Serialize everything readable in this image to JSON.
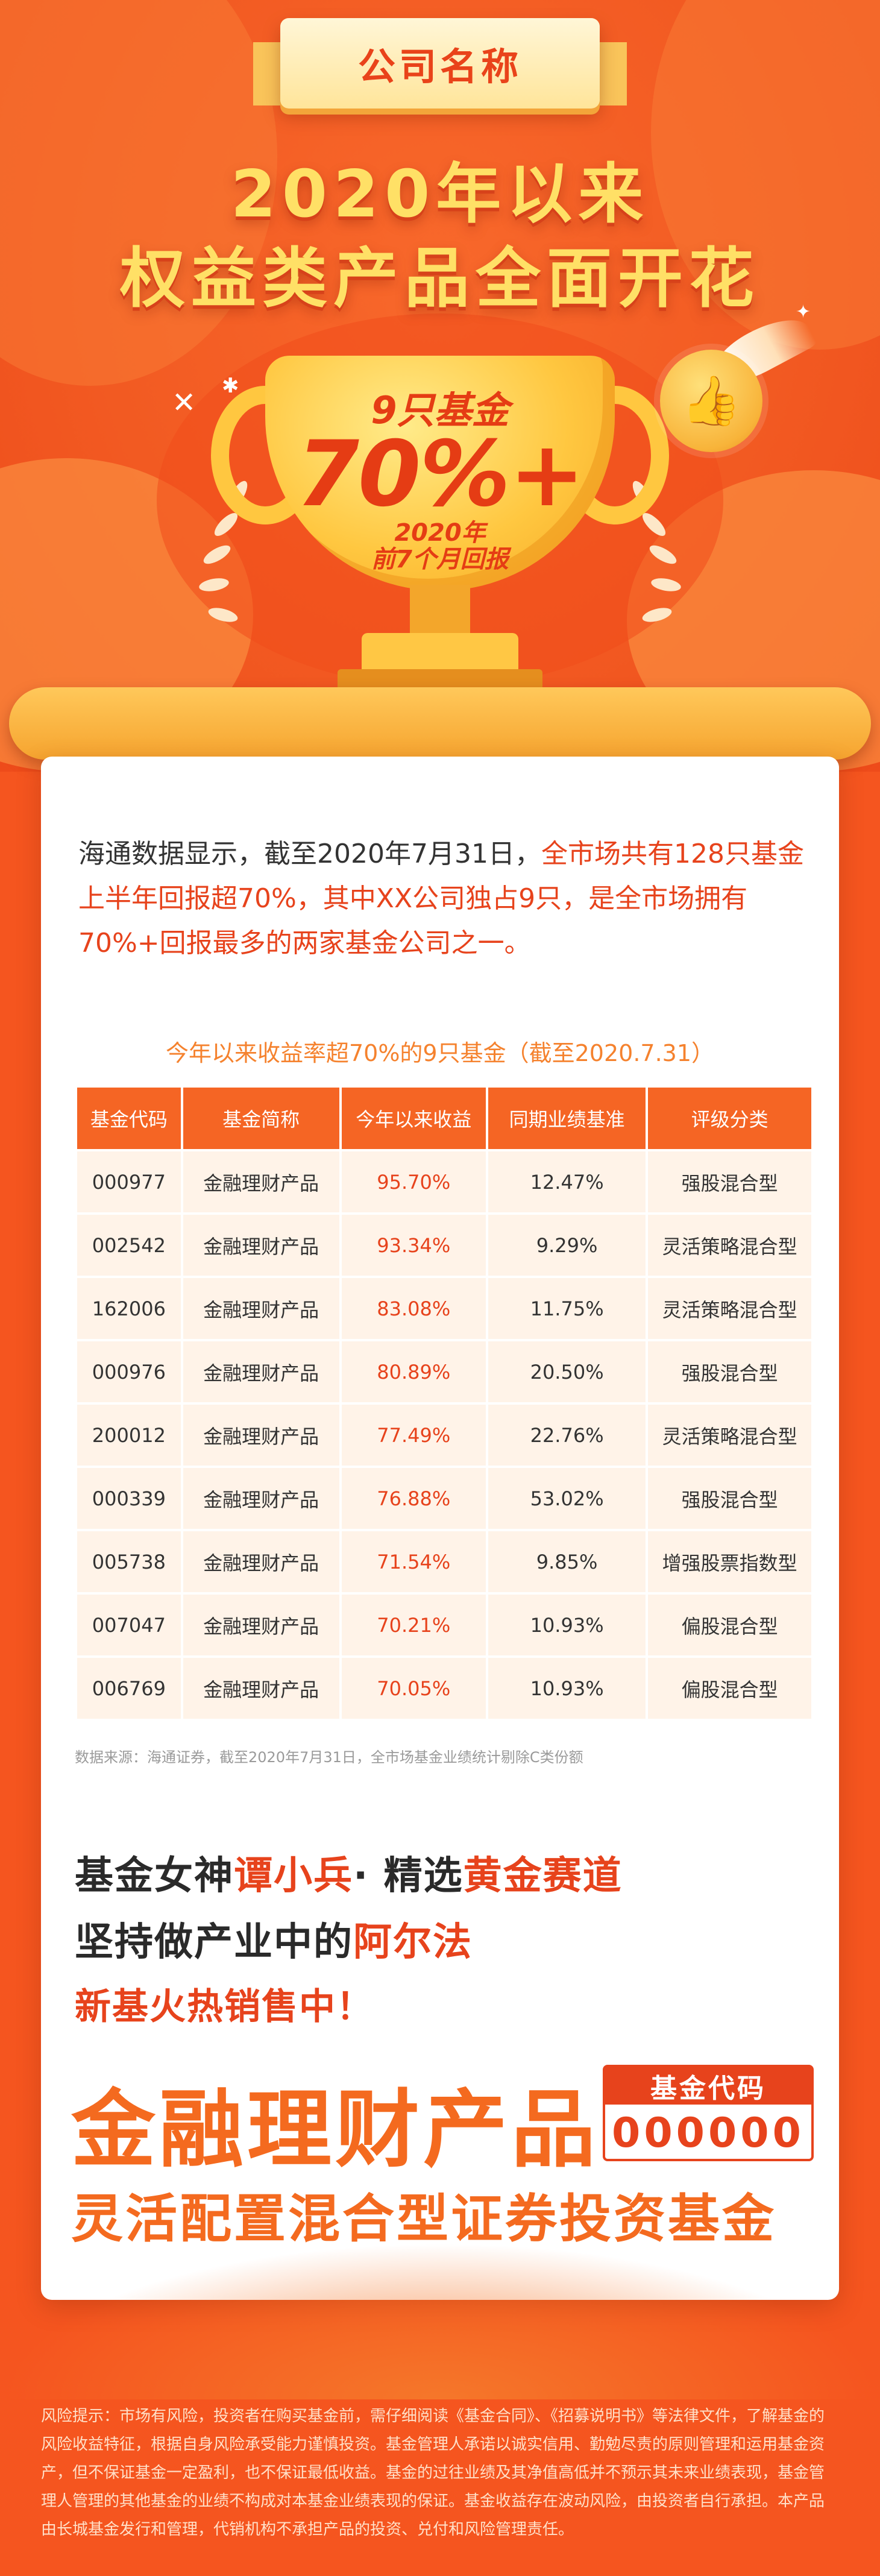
{
  "colors": {
    "background": "#f5551f",
    "accent_red": "#e7431c",
    "accent_orange": "#f46a1f",
    "gold": "#ffc740",
    "headline_yellow": "#ffe066",
    "table_header": "#f56524",
    "table_cell": "#fff3e8"
  },
  "hero": {
    "company_name": "公司名称",
    "headline_line1": "2020年以来",
    "headline_line2": "权益类产品全面开花",
    "trophy": {
      "line1": "9只基金",
      "line2": "70%+",
      "line3": "2020年\n前7个月回报"
    },
    "icons": [
      "trophy-icon",
      "thumbs-up-icon",
      "flame-icon",
      "sparkle-icon",
      "laurel-icon"
    ]
  },
  "intro": {
    "part1": "海通数据显示，截至2020年7月31日，",
    "highlight": "全市场共有128只基金上半年回报超70%，其中XX公司独占9只，是全市场拥有70%+回报最多的两家基金公司之一。"
  },
  "table": {
    "title": "今年以来收益率超70%的9只基金（截至2020.7.31）",
    "headers": [
      "基金代码",
      "基金简称",
      "今年以来收益",
      "同期业绩基准",
      "评级分类"
    ],
    "rows": [
      [
        "000977",
        "金融理财产品",
        "95.70%",
        "12.47%",
        "强股混合型"
      ],
      [
        "002542",
        "金融理财产品",
        "93.34%",
        "9.29%",
        "灵活策略混合型"
      ],
      [
        "162006",
        "金融理财产品",
        "83.08%",
        "11.75%",
        "灵活策略混合型"
      ],
      [
        "000976",
        "金融理财产品",
        "80.89%",
        "20.50%",
        "强股混合型"
      ],
      [
        "200012",
        "金融理财产品",
        "77.49%",
        "22.76%",
        "灵活策略混合型"
      ],
      [
        "000339",
        "金融理财产品",
        "76.88%",
        "53.02%",
        "强股混合型"
      ],
      [
        "005738",
        "金融理财产品",
        "71.54%",
        "9.85%",
        "增强股票指数型"
      ],
      [
        "007047",
        "金融理财产品",
        "70.21%",
        "10.93%",
        "偏股混合型"
      ],
      [
        "006769",
        "金融理财产品",
        "70.05%",
        "10.93%",
        "偏股混合型"
      ]
    ],
    "source": "数据来源：海通证券，截至2020年7月31日，全市场基金业绩统计剔除C类份额"
  },
  "promo": {
    "line1_a": "基金女神",
    "line1_b": "谭小兵",
    "line1_c": "· 精选",
    "line1_d": "黄金赛道",
    "line2_a": "坚持做产业中的",
    "line2_b": "阿尔法",
    "line3": "新基火热销售中！",
    "product_name": "金融理财产品",
    "code_label": "基金代码",
    "code_value": "000000",
    "product_type": "灵活配置混合型证券投资基金"
  },
  "risk": {
    "text": "风险提示：市场有风险，投资者在购买基金前，需仔细阅读《基金合同》、《招募说明书》等法律文件，了解基金的风险收益特征，根据自身风险承受能力谨慎投资。基金管理人承诺以诚实信用、勤勉尽责的原则管理和运用基金资产，但不保证基金一定盈利，也不保证最低收益。基金的过往业绩及其净值高低并不预示其未来业绩表现，基金管理人管理的其他基金的业绩不构成对本基金业绩表现的保证。基金收益存在波动风险，由投资者自行承担。本产品由长城基金发行和管理，代销机构不承担产品的投资、兑付和风险管理责任。"
  }
}
